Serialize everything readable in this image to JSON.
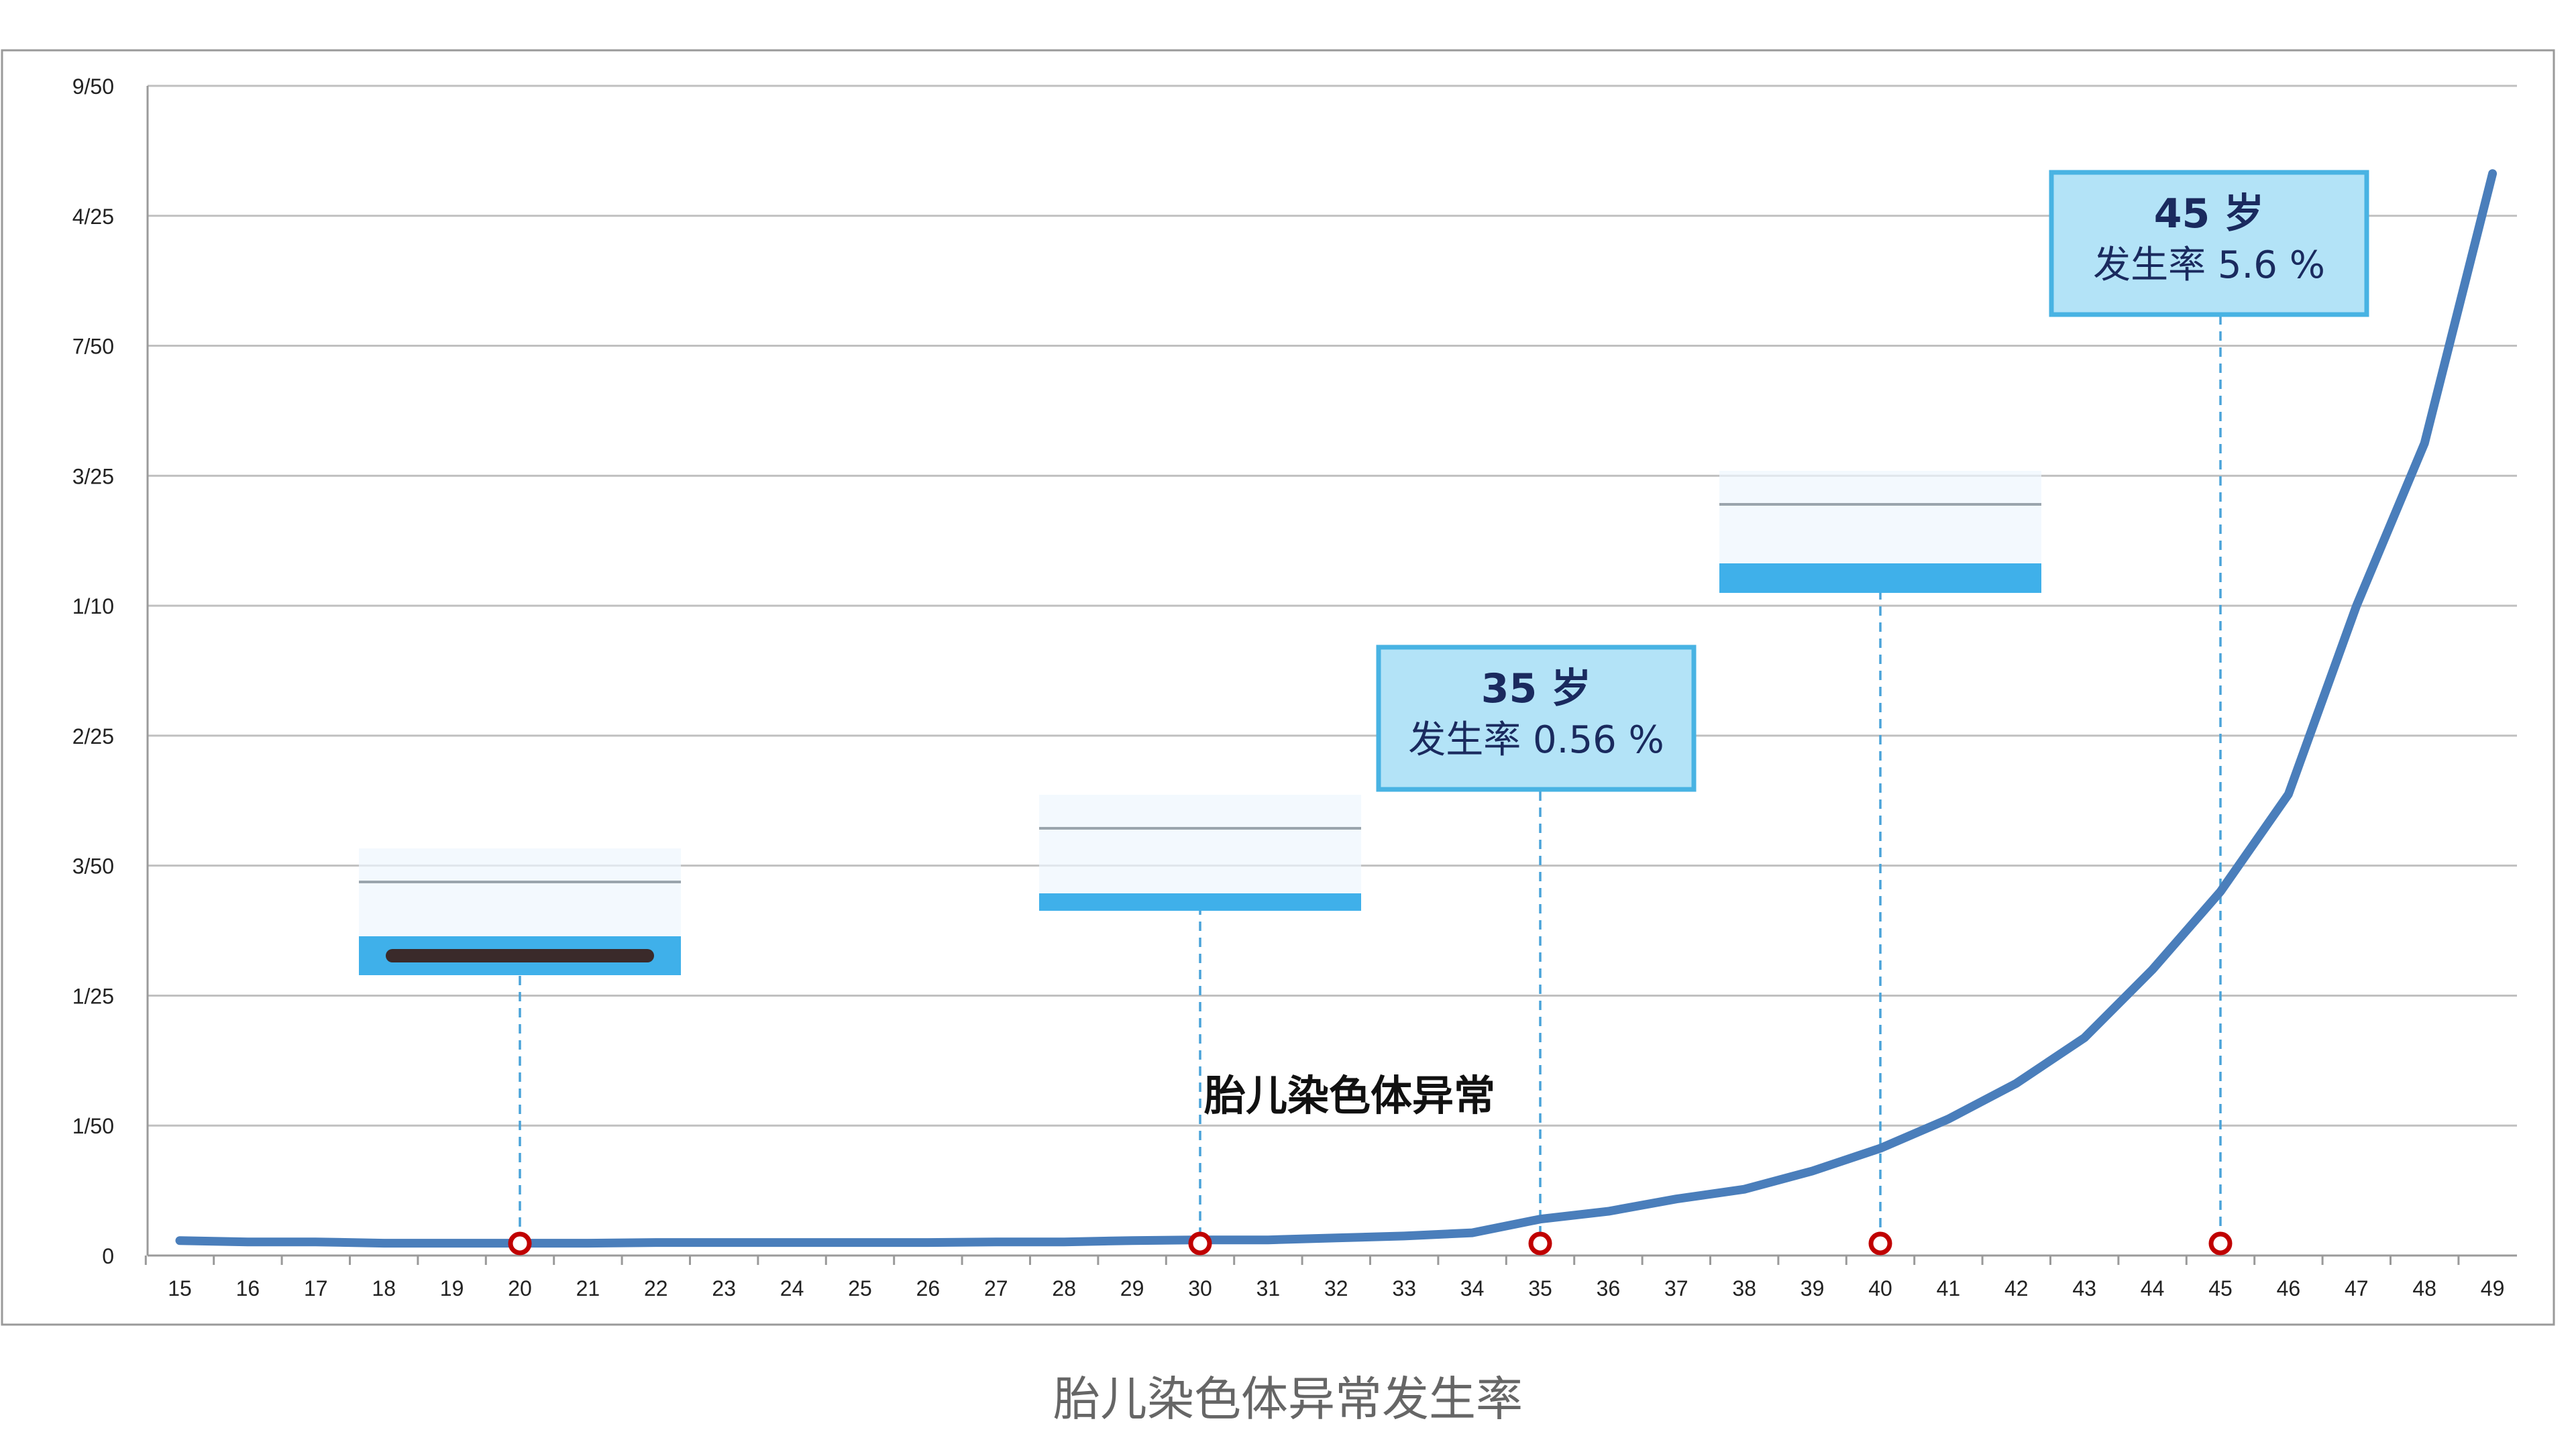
{
  "caption": "胎儿染色体异常发生率",
  "colors": {
    "line": "#4a7ebb",
    "marker": "#c00000",
    "dashed": "#4aa3d9",
    "grid": "#c0c0c0",
    "annotation_fill": "#b3e3f7",
    "annotation_border": "#48b3e3",
    "frame": "#9a9a9a"
  },
  "chart_data": {
    "type": "line",
    "title": "",
    "xlabel": "",
    "ylabel": "",
    "x": [
      15,
      16,
      17,
      18,
      19,
      20,
      21,
      22,
      23,
      24,
      25,
      26,
      27,
      28,
      29,
      30,
      31,
      32,
      33,
      34,
      35,
      36,
      37,
      38,
      39,
      40,
      41,
      42,
      43,
      44,
      45,
      46,
      47,
      48,
      49
    ],
    "y_tick_labels": [
      "0",
      "1/50",
      "1/25",
      "3/50",
      "2/25",
      "1/10",
      "3/25",
      "7/50",
      "4/25",
      "9/50"
    ],
    "y_tick_values": [
      0,
      0.02,
      0.04,
      0.06,
      0.08,
      0.1,
      0.12,
      0.14,
      0.16,
      0.18
    ],
    "ylim": [
      0,
      0.18
    ],
    "grid": true,
    "series": [
      {
        "name": "",
        "values": [
          0.0023,
          0.0021,
          0.0021,
          0.0019,
          0.0019,
          0.0019,
          0.0019,
          0.002,
          0.002,
          0.002,
          0.002,
          0.002,
          0.0021,
          0.0021,
          0.0023,
          0.0024,
          0.0024,
          0.0027,
          0.003,
          0.0035,
          0.0056,
          0.0068,
          0.0087,
          0.0102,
          0.013,
          0.0165,
          0.021,
          0.0265,
          0.0335,
          0.044,
          0.056,
          0.071,
          0.1,
          0.125,
          0.1665
        ]
      }
    ],
    "markers_x": [
      20,
      30,
      35,
      40,
      45
    ],
    "series_label": {
      "text": "胎儿染色体异常"
    },
    "annotations": [
      {
        "x": 35,
        "title": "35 岁",
        "rate": "发生率 0.56 %"
      },
      {
        "x": 45,
        "title": "45 岁",
        "rate": "发生率 5.6 %"
      }
    ]
  }
}
